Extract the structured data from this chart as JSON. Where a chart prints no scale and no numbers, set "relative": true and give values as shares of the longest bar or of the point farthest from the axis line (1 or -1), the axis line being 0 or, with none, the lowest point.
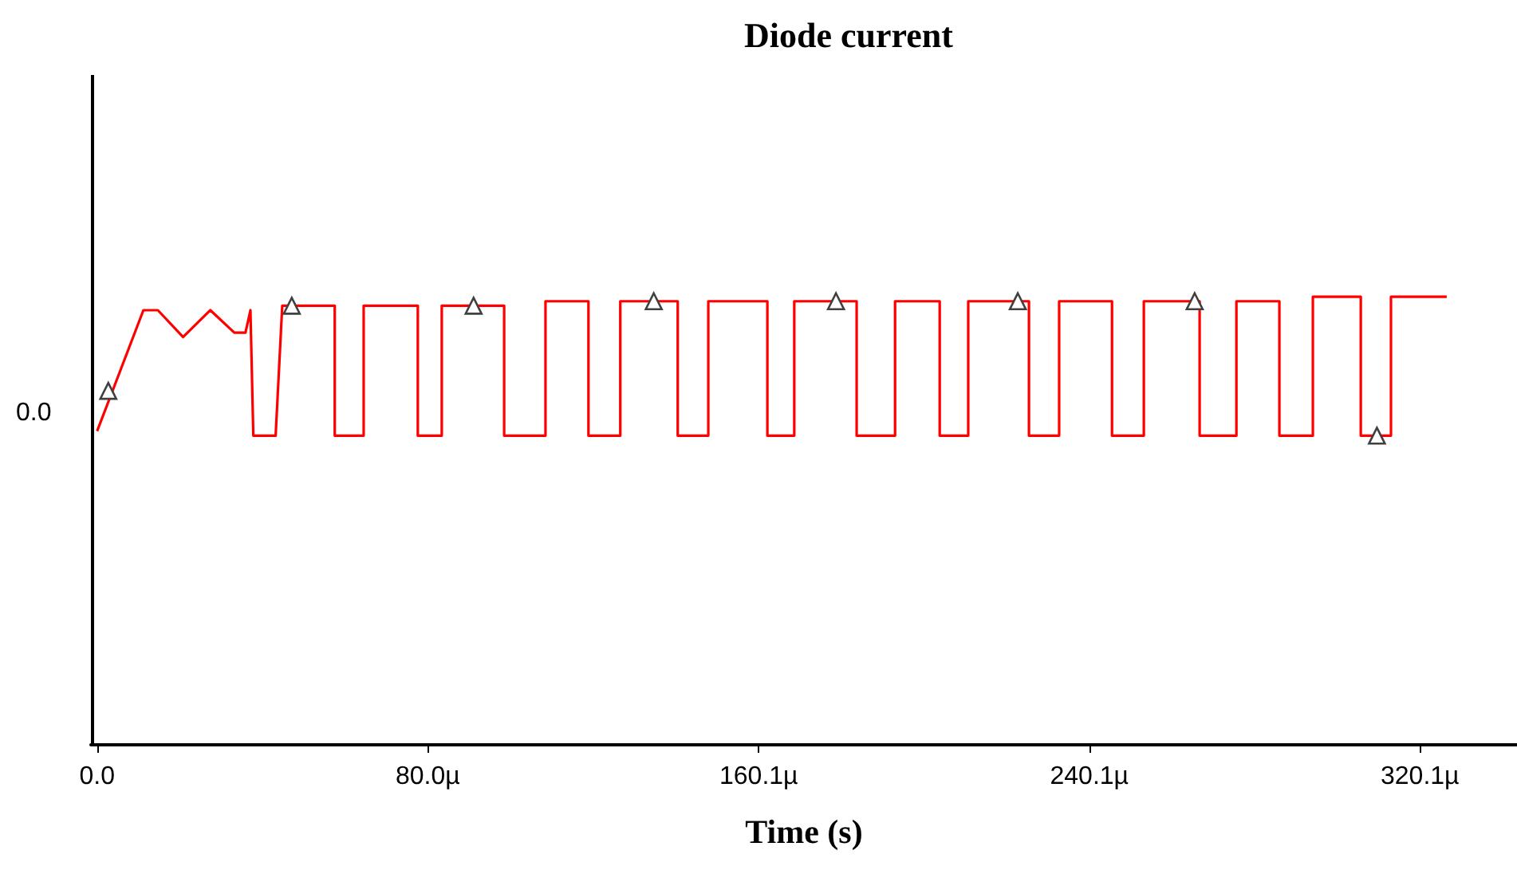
{
  "chart_data": {
    "type": "line",
    "title": "Diode current",
    "xlabel": "Time (s)",
    "relative": true,
    "annotations": [
      "0.0"
    ],
    "xlim": [
      -1.5,
      343.6
    ],
    "xticks": [
      {
        "value": 0,
        "label": "0.0"
      },
      {
        "value": 80.0,
        "label": "80.0µ"
      },
      {
        "value": 160.1,
        "label": "160.1µ"
      },
      {
        "value": 240.1,
        "label": "240.1µ"
      },
      {
        "value": 320.1,
        "label": "320.1µ"
      }
    ],
    "line_style": "solid",
    "series": [
      {
        "color": "#ff0000",
        "marker": "none",
        "x": [
          0,
          11.2,
          14.7,
          20.8,
          27.4,
          33.2,
          35.9,
          37.1,
          37.8,
          43.2,
          44.8,
          57.5,
          57.5,
          64.5,
          64.5,
          77.6,
          77.6,
          83.4,
          83.4,
          98.5,
          98.5,
          108.5,
          108.5,
          118.9,
          118.9,
          126.6,
          126.6,
          140.5,
          140.5,
          147.9,
          147.9,
          162.2,
          162.2,
          168.7,
          168.7,
          183.8,
          183.8,
          193.1,
          193.1,
          203.9,
          203.9,
          210.8,
          210.8,
          225.5,
          225.5,
          232.8,
          232.8,
          245.6,
          245.6,
          253.3,
          253.3,
          266.8,
          266.8,
          275.7,
          275.7,
          286.1,
          286.1,
          294.2,
          294.2,
          305.8,
          305.8,
          313.1,
          313.1,
          326.6
        ],
        "values": [
          0.7,
          0.97,
          0.97,
          0.91,
          0.97,
          0.92,
          0.92,
          0.97,
          0.69,
          0.69,
          0.98,
          0.98,
          0.69,
          0.69,
          0.98,
          0.98,
          0.69,
          0.69,
          0.98,
          0.98,
          0.69,
          0.69,
          0.99,
          0.99,
          0.69,
          0.69,
          0.99,
          0.99,
          0.69,
          0.69,
          0.99,
          0.99,
          0.69,
          0.69,
          0.99,
          0.99,
          0.69,
          0.69,
          0.99,
          0.99,
          0.69,
          0.69,
          0.99,
          0.99,
          0.69,
          0.69,
          0.99,
          0.99,
          0.69,
          0.69,
          0.99,
          0.99,
          0.69,
          0.69,
          0.99,
          0.99,
          0.69,
          0.69,
          1,
          1,
          0.69,
          0.69,
          1,
          1
        ]
      },
      {
        "type": "scatter",
        "color": "#404040",
        "marker": "triangle",
        "x": [
          2.7,
          47.1,
          91.1,
          134.7,
          178.8,
          222.8,
          265.6,
          309.7
        ],
        "values": [
          0.79,
          0.98,
          0.98,
          0.99,
          0.99,
          0.99,
          0.99,
          0.69
        ]
      }
    ]
  }
}
